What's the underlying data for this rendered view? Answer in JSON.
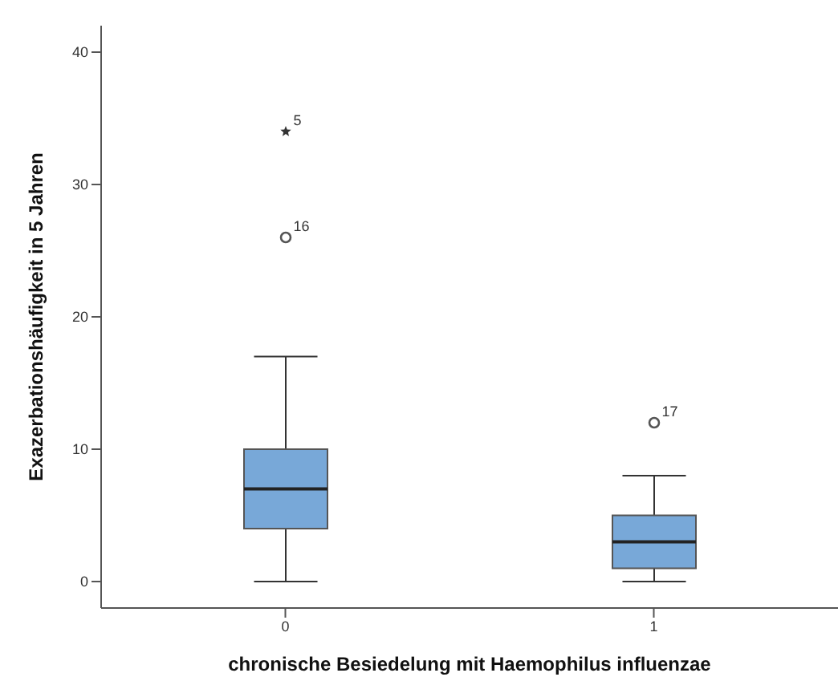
{
  "chart_data": {
    "type": "box",
    "xlabel": "chronische Besiedelung mit Haemophilus influenzae",
    "ylabel": "Exazerbationshäufigkeit in 5 Jahren",
    "categories": [
      "0",
      "1"
    ],
    "boxes": [
      {
        "low": 0,
        "q1": 4,
        "median": 7,
        "q3": 10,
        "high": 17,
        "outliers": [
          26,
          34
        ]
      },
      {
        "low": 0,
        "q1": 1,
        "median": 3,
        "q3": 5,
        "high": 8,
        "outliers": [
          12
        ]
      }
    ],
    "color": "#78a8d8",
    "ylim": [
      -2,
      42
    ],
    "yticks": [
      0,
      10,
      20,
      30,
      40
    ],
    "annotations": [
      "16",
      "5",
      "17"
    ]
  }
}
